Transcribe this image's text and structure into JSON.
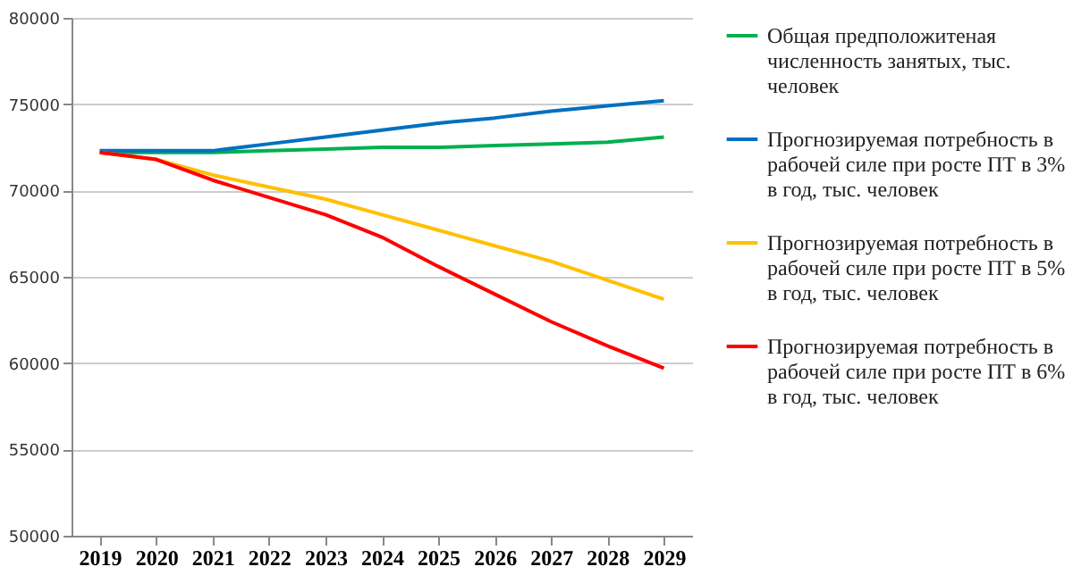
{
  "chart_data": {
    "type": "line",
    "categories": [
      "2019",
      "2020",
      "2021",
      "2022",
      "2023",
      "2024",
      "2025",
      "2026",
      "2027",
      "2028",
      "2029"
    ],
    "series": [
      {
        "name": "Общая предположитеная численность занятых, тыс. человек",
        "color": "#00b050",
        "values": [
          72200,
          72200,
          72200,
          72300,
          72400,
          72500,
          72500,
          72600,
          72700,
          72800,
          73100
        ]
      },
      {
        "name": "Прогнозируемая потребность в рабочей силе при росте ПТ в 3% в год, тыс. человек",
        "color": "#0070c0",
        "values": [
          72300,
          72300,
          72300,
          72700,
          73100,
          73500,
          73900,
          74200,
          74600,
          74900,
          75200
        ]
      },
      {
        "name": "Прогнозируемая потребность в рабочей силе при росте ПТ в 5% в год, тыс. человек",
        "color": "#ffc000",
        "values": [
          72200,
          71800,
          70900,
          70200,
          69500,
          68600,
          67700,
          66800,
          65900,
          64800,
          63700
        ]
      },
      {
        "name": "Прогнозируемая потребность в рабочей силе при росте ПТ в 6% в год, тыс. человек",
        "color": "#ff0000",
        "values": [
          72200,
          71800,
          70600,
          69600,
          68600,
          67300,
          65600,
          64000,
          62400,
          61000,
          59700
        ]
      }
    ],
    "ylim": [
      50000,
      80000
    ],
    "yticks": [
      50000,
      55000,
      60000,
      65000,
      70000,
      75000,
      80000
    ],
    "grid": "y",
    "legend": "right",
    "marker": "none",
    "line_style": "solid"
  }
}
